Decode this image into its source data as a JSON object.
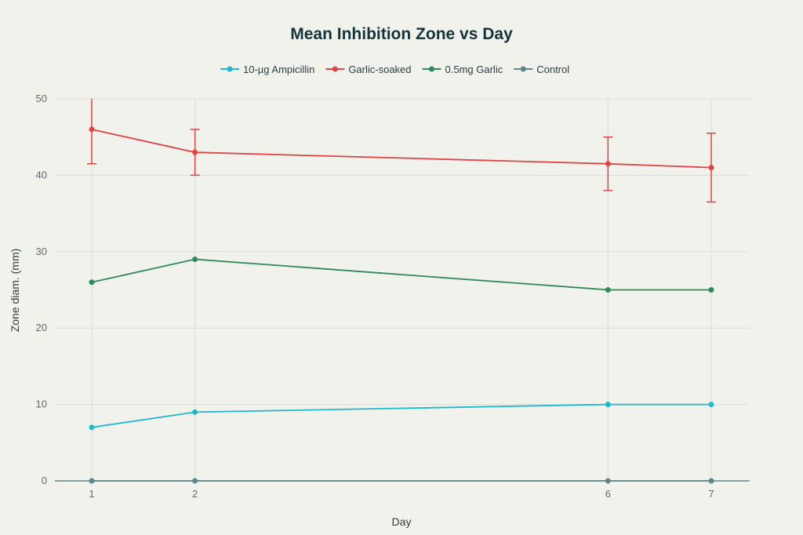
{
  "chart_data": {
    "type": "line",
    "title": "Mean Inhibition Zone vs Day",
    "xlabel": "Day",
    "ylabel": "Zone diam. (mm)",
    "x": [
      1,
      2,
      6,
      7
    ],
    "xticks": [
      "1",
      "2",
      "6",
      "7"
    ],
    "ylim": [
      0,
      50
    ],
    "yticks": [
      "0",
      "10",
      "20",
      "30",
      "40",
      "50"
    ],
    "grid": true,
    "legend_position": "top",
    "series": [
      {
        "name": "10-µg Ampicillin",
        "color": "#1fb8cd",
        "values": [
          7,
          9,
          10,
          10
        ]
      },
      {
        "name": "Garlic-soaked",
        "color": "#db4545",
        "values": [
          46,
          43,
          41.5,
          41
        ],
        "error_upper": [
          50.5,
          46,
          45,
          45.5
        ],
        "error_lower": [
          41.5,
          40,
          38,
          36.5
        ]
      },
      {
        "name": "0.5mg Garlic",
        "color": "#2e8b57",
        "values": [
          26,
          29,
          25,
          25
        ]
      },
      {
        "name": "Control",
        "color": "#5d878f",
        "values": [
          0,
          0,
          0,
          0
        ]
      }
    ]
  }
}
